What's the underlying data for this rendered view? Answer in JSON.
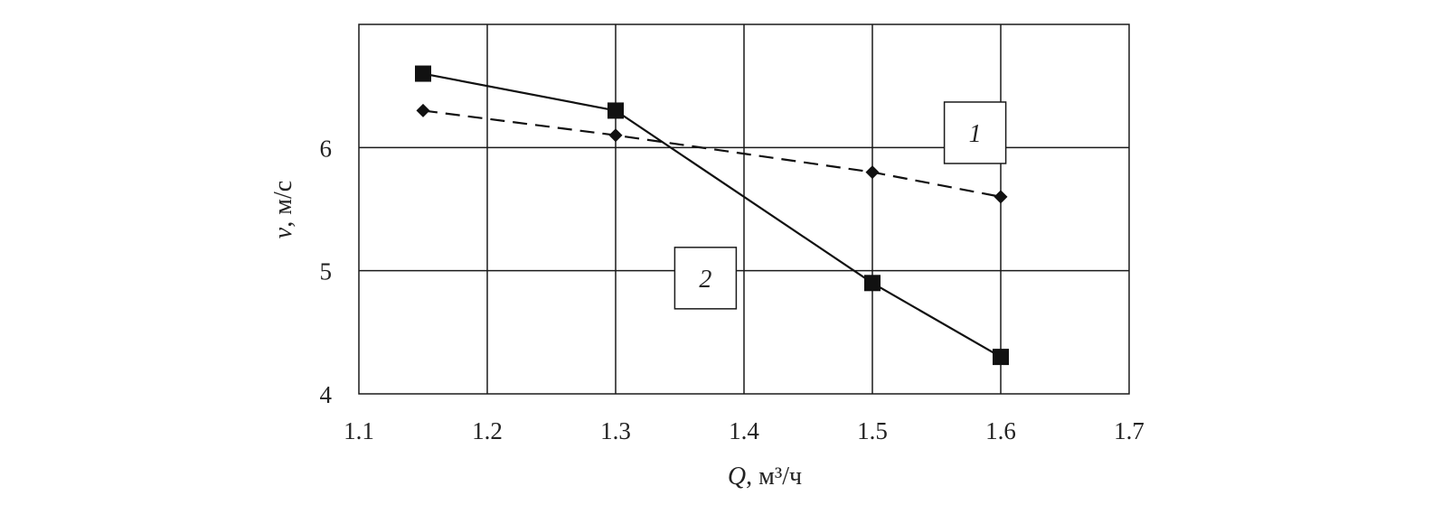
{
  "chart_data": {
    "type": "line",
    "xlabel": "",
    "ylabel": "",
    "xlabel_parts": {
      "var": "Q",
      "rest": ", м³/ч"
    },
    "ylabel_parts": {
      "var": "v",
      "rest": ", м/с"
    },
    "xlim": [
      1.1,
      1.7
    ],
    "ylim": [
      4,
      7
    ],
    "x_ticks": [
      1.1,
      1.2,
      1.3,
      1.4,
      1.5,
      1.6,
      1.7
    ],
    "x_tick_labels": [
      "1.1",
      "1.2",
      "1.3",
      "1.4",
      "1.5",
      "1.6",
      "1.7"
    ],
    "y_ticks": [
      4,
      5,
      6
    ],
    "y_tick_labels": [
      "4",
      "5",
      "6"
    ],
    "grid": true,
    "series": [
      {
        "label": "1",
        "style": "dashed",
        "marker": "diamond",
        "color": "#111111",
        "x": [
          1.15,
          1.3,
          1.5,
          1.6
        ],
        "y": [
          6.3,
          6.1,
          5.8,
          5.6
        ],
        "label_pos": [
          1.58,
          6.12
        ]
      },
      {
        "label": "2",
        "style": "solid",
        "marker": "square",
        "color": "#111111",
        "x": [
          1.15,
          1.3,
          1.5,
          1.6
        ],
        "y": [
          6.6,
          6.3,
          4.9,
          4.3
        ],
        "label_pos": [
          1.37,
          4.94
        ]
      }
    ]
  }
}
